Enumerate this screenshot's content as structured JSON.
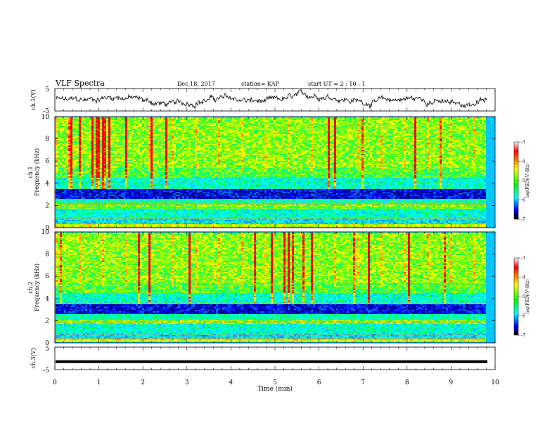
{
  "header": {
    "title": "VLF Spectra",
    "date": "Dec.18, 2017",
    "station": "station= KAP",
    "start": "start  UT =   2 : 10 : 1"
  },
  "chart_data": [
    {
      "type": "line",
      "ylabel": "ch.1(V)",
      "ylim": [
        -5,
        5
      ],
      "yticks": [
        "5",
        "-5"
      ],
      "xlim": [
        0,
        10
      ],
      "color": "#000000"
    },
    {
      "type": "heatmap",
      "ylabel": "ch.1\nFrequency (kHz)",
      "ylim": [
        0,
        10
      ],
      "yticks": [
        "0",
        "2",
        "4",
        "6",
        "8",
        "10"
      ],
      "xlim": [
        0,
        10
      ],
      "colorbar": {
        "label": "log(PSD)(V²/Hz)",
        "range": [
          -7,
          -3
        ],
        "ticks": [
          "-3",
          "-4",
          "-5",
          "-6",
          "-7"
        ]
      }
    },
    {
      "type": "heatmap",
      "ylabel": "ch.2\nFrequency (kHz)",
      "ylim": [
        0,
        10
      ],
      "yticks": [
        "0",
        "2",
        "4",
        "6",
        "8",
        "10"
      ],
      "xlim": [
        0,
        10
      ],
      "colorbar": {
        "label": "log(PSD)(V²/Hz)",
        "range": [
          -7,
          -3
        ],
        "ticks": [
          "-3",
          "-4",
          "-5",
          "-6",
          "-7"
        ]
      }
    },
    {
      "type": "line",
      "ylabel": "ch.3(V)",
      "ylim": [
        -5,
        5
      ],
      "yticks": [
        "5",
        "-5"
      ],
      "xlim": [
        0,
        10
      ],
      "xlabel": "Time (min)",
      "xticks": [
        "0",
        "1",
        "2",
        "3",
        "4",
        "5",
        "6",
        "7",
        "8",
        "9",
        "10"
      ],
      "constant_value": -1.5
    }
  ],
  "colors": {
    "colormap": [
      "#ffffff",
      "#ff0000",
      "#ffff00",
      "#00ff00",
      "#00ffff",
      "#0000ff",
      "#000000"
    ]
  }
}
